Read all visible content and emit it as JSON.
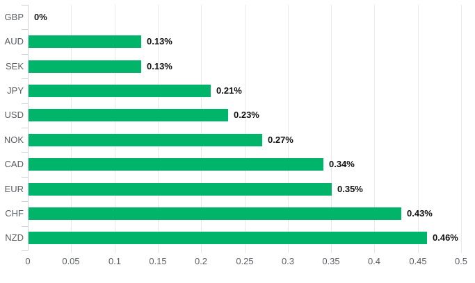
{
  "chart_data": {
    "type": "bar",
    "orientation": "horizontal",
    "title": "",
    "xlabel": "",
    "ylabel": "",
    "categories": [
      "GBP",
      "AUD",
      "SEK",
      "JPY",
      "USD",
      "NOK",
      "CAD",
      "EUR",
      "CHF",
      "NZD"
    ],
    "values": [
      0,
      0.13,
      0.13,
      0.21,
      0.23,
      0.27,
      0.34,
      0.35,
      0.43,
      0.46
    ],
    "value_labels": [
      "0%",
      "0.13%",
      "0.13%",
      "0.21%",
      "0.23%",
      "0.27%",
      "0.34%",
      "0.35%",
      "0.43%",
      "0.46%"
    ],
    "xlim": [
      0,
      0.5
    ],
    "x_ticks": [
      0,
      0.05,
      0.1,
      0.15,
      0.2,
      0.25,
      0.3,
      0.35,
      0.4,
      0.45,
      0.5
    ],
    "x_tick_labels": [
      "0",
      "0.05",
      "0.1",
      "0.15",
      "0.2",
      "0.25",
      "0.3",
      "0.35",
      "0.4",
      "0.45",
      "0.5"
    ],
    "grid": true,
    "legend": false,
    "colors": {
      "bar": "#00b469",
      "gridline": "#e9e9e9",
      "axis": "#ccd3de",
      "category_label": "#595d63",
      "tick_label": "#5a5e64",
      "value_label": "#111111",
      "background": "#ffffff"
    }
  }
}
